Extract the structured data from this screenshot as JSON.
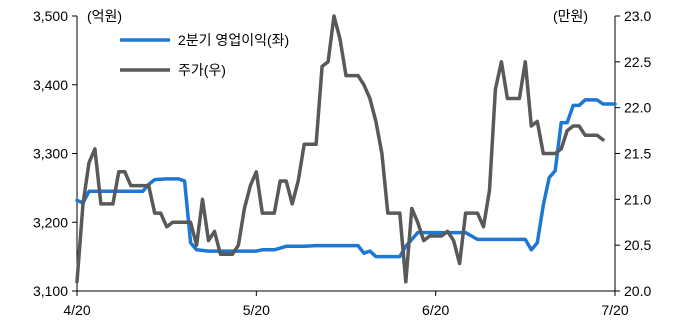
{
  "chart_data": {
    "type": "line",
    "y_left_unit": "(억원)",
    "y_right_unit": "(만원)",
    "x_tick_labels": [
      "4/20",
      "5/20",
      "6/20",
      "7/20"
    ],
    "y_left_range": [
      3100,
      3500
    ],
    "y_left_ticks": [
      "3,100",
      "3,200",
      "3,300",
      "3,400",
      "3,500"
    ],
    "y_right_range": [
      20.0,
      23.0
    ],
    "y_right_ticks": [
      "20.0",
      "20.5",
      "21.0",
      "21.5",
      "22.0",
      "22.5",
      "23.0"
    ],
    "x_range_days": [
      0,
      90
    ],
    "grid": false,
    "legend_position": "top-left",
    "series": [
      {
        "name": "2분기 영업이익(좌)",
        "axis": "left",
        "color": "#1f77d4",
        "points": [
          [
            0,
            3232
          ],
          [
            1,
            3228
          ],
          [
            2,
            3245
          ],
          [
            3,
            3245
          ],
          [
            5,
            3245
          ],
          [
            8,
            3245
          ],
          [
            11,
            3245
          ],
          [
            12,
            3255
          ],
          [
            13,
            3262
          ],
          [
            15,
            3263
          ],
          [
            17,
            3263
          ],
          [
            18,
            3260
          ],
          [
            19,
            3170
          ],
          [
            20,
            3160
          ],
          [
            22,
            3158
          ],
          [
            26,
            3158
          ],
          [
            30,
            3158
          ],
          [
            31,
            3160
          ],
          [
            33,
            3160
          ],
          [
            35,
            3165
          ],
          [
            38,
            3165
          ],
          [
            40,
            3166
          ],
          [
            45,
            3166
          ],
          [
            47,
            3166
          ],
          [
            48,
            3155
          ],
          [
            49,
            3158
          ],
          [
            50,
            3150
          ],
          [
            52,
            3150
          ],
          [
            54,
            3150
          ],
          [
            55,
            3165
          ],
          [
            57,
            3185
          ],
          [
            61,
            3185
          ],
          [
            65,
            3185
          ],
          [
            66,
            3180
          ],
          [
            67,
            3175
          ],
          [
            69,
            3175
          ],
          [
            72,
            3175
          ],
          [
            75,
            3175
          ],
          [
            76,
            3160
          ],
          [
            77,
            3170
          ],
          [
            78,
            3225
          ],
          [
            79,
            3265
          ],
          [
            80,
            3275
          ],
          [
            81,
            3345
          ],
          [
            82,
            3345
          ],
          [
            83,
            3370
          ],
          [
            84,
            3370
          ],
          [
            85,
            3378
          ],
          [
            87,
            3378
          ],
          [
            88,
            3372
          ],
          [
            90,
            3372
          ]
        ]
      },
      {
        "name": "주가(우)",
        "axis": "right",
        "color": "#595959",
        "points": [
          [
            0,
            20.1
          ],
          [
            1,
            20.95
          ],
          [
            2,
            21.4
          ],
          [
            3,
            21.55
          ],
          [
            4,
            20.95
          ],
          [
            5,
            20.95
          ],
          [
            6,
            20.95
          ],
          [
            7,
            21.3
          ],
          [
            8,
            21.3
          ],
          [
            9,
            21.15
          ],
          [
            10,
            21.15
          ],
          [
            11,
            21.15
          ],
          [
            12,
            21.15
          ],
          [
            13,
            20.85
          ],
          [
            14,
            20.85
          ],
          [
            15,
            20.7
          ],
          [
            16,
            20.75
          ],
          [
            17,
            20.75
          ],
          [
            18,
            20.75
          ],
          [
            19,
            20.75
          ],
          [
            20,
            20.5
          ],
          [
            21,
            21.0
          ],
          [
            22,
            20.55
          ],
          [
            23,
            20.65
          ],
          [
            24,
            20.4
          ],
          [
            25,
            20.4
          ],
          [
            26,
            20.4
          ],
          [
            27,
            20.5
          ],
          [
            28,
            20.9
          ],
          [
            29,
            21.15
          ],
          [
            30,
            21.3
          ],
          [
            31,
            20.85
          ],
          [
            32,
            20.85
          ],
          [
            33,
            20.85
          ],
          [
            34,
            21.2
          ],
          [
            35,
            21.2
          ],
          [
            36,
            20.95
          ],
          [
            37,
            21.2
          ],
          [
            38,
            21.6
          ],
          [
            39,
            21.6
          ],
          [
            40,
            21.6
          ],
          [
            41,
            22.45
          ],
          [
            42,
            22.5
          ],
          [
            43,
            23.0
          ],
          [
            44,
            22.75
          ],
          [
            45,
            22.35
          ],
          [
            46,
            22.35
          ],
          [
            47,
            22.35
          ],
          [
            48,
            22.25
          ],
          [
            49,
            22.1
          ],
          [
            50,
            21.85
          ],
          [
            51,
            21.5
          ],
          [
            52,
            20.85
          ],
          [
            53,
            20.85
          ],
          [
            54,
            20.85
          ],
          [
            55,
            20.1
          ],
          [
            56,
            20.9
          ],
          [
            57,
            20.75
          ],
          [
            58,
            20.55
          ],
          [
            59,
            20.6
          ],
          [
            60,
            20.6
          ],
          [
            61,
            20.6
          ],
          [
            62,
            20.65
          ],
          [
            63,
            20.55
          ],
          [
            64,
            20.3
          ],
          [
            65,
            20.85
          ],
          [
            66,
            20.85
          ],
          [
            67,
            20.85
          ],
          [
            68,
            20.7
          ],
          [
            69,
            21.1
          ],
          [
            70,
            22.2
          ],
          [
            71,
            22.5
          ],
          [
            72,
            22.1
          ],
          [
            73,
            22.1
          ],
          [
            74,
            22.1
          ],
          [
            75,
            22.5
          ],
          [
            76,
            21.8
          ],
          [
            77,
            21.85
          ],
          [
            78,
            21.5
          ],
          [
            79,
            21.5
          ],
          [
            80,
            21.5
          ],
          [
            81,
            21.55
          ],
          [
            82,
            21.75
          ],
          [
            83,
            21.8
          ],
          [
            84,
            21.8
          ],
          [
            85,
            21.7
          ],
          [
            86,
            21.7
          ],
          [
            87,
            21.7
          ],
          [
            88,
            21.65
          ]
        ]
      }
    ]
  }
}
